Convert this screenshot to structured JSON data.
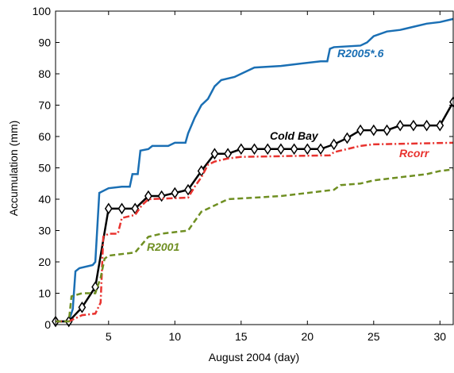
{
  "chart_data": {
    "type": "line",
    "xlabel": "August 2004 (day)",
    "ylabel": "Accumulation (mm)",
    "xlim": [
      1,
      31
    ],
    "ylim": [
      0,
      100
    ],
    "xticks": [
      5,
      10,
      15,
      20,
      25,
      30
    ],
    "yticks": [
      0,
      10,
      20,
      30,
      40,
      50,
      60,
      70,
      80,
      90,
      100
    ],
    "grid": false,
    "series": [
      {
        "name": "R2005*.6",
        "color": "#1a6fb4",
        "style": "solid",
        "x": [
          1,
          2,
          2.3,
          2.5,
          2.8,
          3.8,
          4,
          4.3,
          5,
          6,
          6.6,
          6.8,
          7.2,
          7.4,
          8,
          8.3,
          9.5,
          10,
          10.8,
          11,
          11.5,
          12,
          12.5,
          13,
          13.5,
          14.5,
          15,
          16,
          18,
          19,
          21,
          21.5,
          21.7,
          22,
          24,
          24.5,
          25,
          26,
          27,
          28,
          29,
          30,
          31
        ],
        "values": [
          1,
          1,
          5,
          17,
          18,
          19,
          20,
          42,
          43.5,
          44,
          44,
          48,
          48,
          55.5,
          56,
          57,
          57,
          58,
          58,
          61,
          66,
          70,
          72,
          76,
          78,
          79,
          80,
          82,
          82.5,
          83,
          84,
          84,
          88,
          88.5,
          89,
          90,
          92,
          93.5,
          94,
          95,
          96,
          96.5,
          97.5
        ]
      },
      {
        "name": "Cold Bay",
        "color": "#000000",
        "style": "solid",
        "marker": "diamond",
        "x": [
          1,
          2,
          3,
          4,
          5,
          6,
          7,
          8,
          9,
          10,
          11,
          12,
          13,
          14,
          15,
          16,
          17,
          18,
          19,
          20,
          21,
          22,
          23,
          24,
          25,
          26,
          27,
          28,
          29,
          30,
          31
        ],
        "values": [
          1,
          1,
          5.5,
          12,
          37,
          37,
          37,
          41,
          41,
          42,
          43,
          49,
          54.5,
          54.5,
          56,
          56,
          56,
          56,
          56,
          56,
          56,
          57.5,
          59.5,
          62,
          62,
          62,
          63.5,
          63.5,
          63.5,
          63.5,
          71
        ]
      },
      {
        "name": "Rcorr",
        "color": "#e8332f",
        "style": "dashdot",
        "x": [
          1,
          2,
          2.5,
          3,
          4,
          4.4,
          4.6,
          5,
          5.7,
          6,
          7,
          7.5,
          8,
          11,
          11.5,
          12,
          12.5,
          13,
          14,
          15,
          21.7,
          22,
          23,
          24,
          25,
          31
        ],
        "values": [
          1,
          1,
          2,
          3,
          3.5,
          7,
          28,
          29,
          29,
          34,
          35,
          38,
          40,
          40.5,
          44,
          47,
          51,
          52,
          53,
          53.5,
          54,
          55,
          56,
          57,
          57.5,
          58
        ]
      },
      {
        "name": "R2001",
        "color": "#6f8f22",
        "style": "dashed",
        "x": [
          1,
          2,
          2.2,
          3,
          4,
          4.4,
          4.7,
          5,
          7,
          8,
          9,
          11,
          11.5,
          12,
          13,
          14,
          18,
          20,
          22,
          22.5,
          24,
          25,
          27,
          29,
          30,
          31
        ],
        "values": [
          1,
          1,
          9,
          10,
          10,
          15,
          21,
          22,
          23,
          28,
          29,
          30,
          33,
          36,
          38,
          40,
          41,
          42,
          43,
          44.5,
          45,
          46,
          47,
          48,
          49,
          49.5
        ]
      }
    ]
  }
}
